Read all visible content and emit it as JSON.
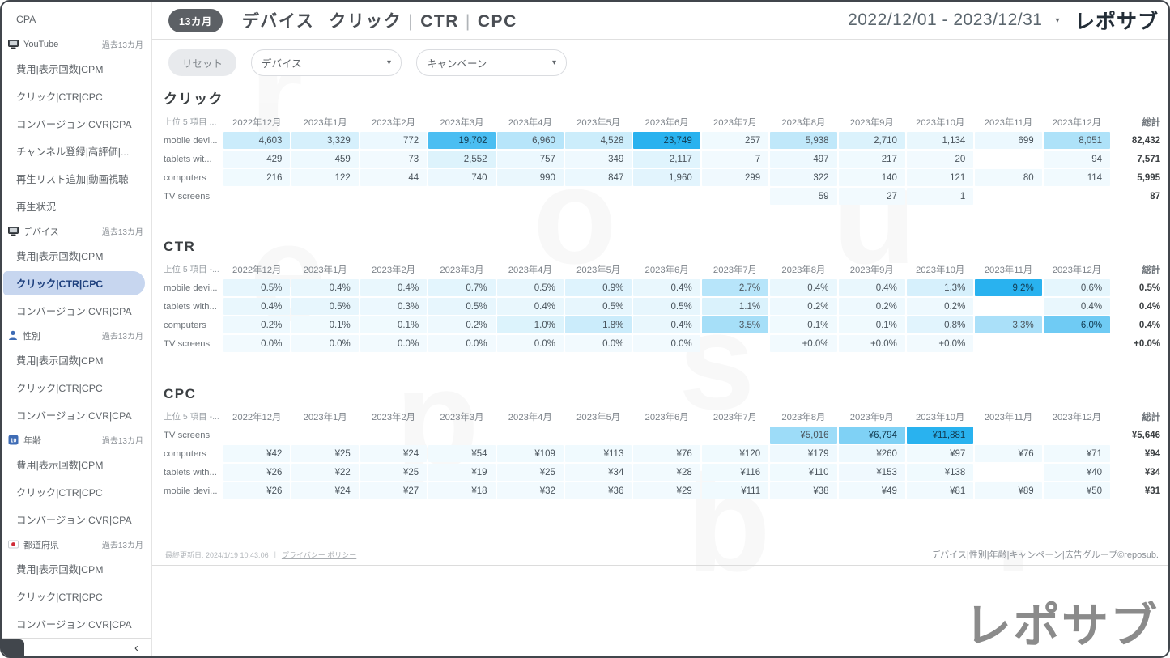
{
  "app": {
    "logo": "レポサブ",
    "watermark_letters": [
      "r",
      "e",
      "p",
      "o",
      "s",
      "u",
      "b",
      "."
    ],
    "accent_color": "#29b2ef",
    "active_item_color": "#c7d6ef"
  },
  "header": {
    "badge": "13カ月",
    "title_parts": [
      "デバイス",
      "クリック",
      "CTR",
      "CPC"
    ],
    "sep": "|",
    "date_range": "2022/12/01 - 2023/12/31"
  },
  "filters": {
    "reset_label": "リセット",
    "dropdowns": [
      "デバイス",
      "キャンペーン"
    ]
  },
  "sidebar": {
    "entries": [
      {
        "type": "item",
        "label": "CPA"
      },
      {
        "type": "section",
        "icon": "monitor",
        "label": "YouTube",
        "period": "過去13カ月"
      },
      {
        "type": "item",
        "label": "費用|表示回数|CPM"
      },
      {
        "type": "item",
        "label": "クリック|CTR|CPC"
      },
      {
        "type": "item",
        "label": "コンバージョン|CVR|CPA"
      },
      {
        "type": "item",
        "label": "チャンネル登録|高評価|..."
      },
      {
        "type": "item",
        "label": "再生リスト追加|動画視聴"
      },
      {
        "type": "item",
        "label": "再生状況"
      },
      {
        "type": "section",
        "icon": "monitor",
        "label": "デバイス",
        "period": "過去13カ月"
      },
      {
        "type": "item",
        "label": "費用|表示回数|CPM"
      },
      {
        "type": "item",
        "label": "クリック|CTR|CPC",
        "active": true
      },
      {
        "type": "item",
        "label": "コンバージョン|CVR|CPA"
      },
      {
        "type": "section",
        "icon": "person",
        "label": "性別",
        "period": "過去13カ月"
      },
      {
        "type": "item",
        "label": "費用|表示回数|CPM"
      },
      {
        "type": "item",
        "label": "クリック|CTR|CPC"
      },
      {
        "type": "item",
        "label": "コンバージョン|CVR|CPA"
      },
      {
        "type": "section",
        "icon": "ten",
        "label": "年齢",
        "period": "過去13カ月"
      },
      {
        "type": "item",
        "label": "費用|表示回数|CPM"
      },
      {
        "type": "item",
        "label": "クリック|CTR|CPC"
      },
      {
        "type": "item",
        "label": "コンバージョン|CVR|CPA"
      },
      {
        "type": "section",
        "icon": "flag-jp",
        "label": "都道府県",
        "period": "過去13カ月"
      },
      {
        "type": "item",
        "label": "費用|表示回数|CPM"
      },
      {
        "type": "item",
        "label": "クリック|CTR|CPC"
      },
      {
        "type": "item",
        "label": "コンバージョン|CVR|CPA"
      }
    ]
  },
  "tables": [
    {
      "key": "clicks",
      "title": "クリック",
      "first_col_header": "上位 5 項目 ...",
      "total_label": "総計",
      "columns": [
        "2022年12月",
        "2023年1月",
        "2023年2月",
        "2023年3月",
        "2023年4月",
        "2023年5月",
        "2023年6月",
        "2023年7月",
        "2023年8月",
        "2023年9月",
        "2023年10月",
        "2023年11月",
        "2023年12月"
      ],
      "rows": [
        {
          "label": "mobile devi...",
          "values": [
            "4,603",
            "3,329",
            "772",
            "19,702",
            "6,960",
            "4,528",
            "23,749",
            "257",
            "5,938",
            "2,710",
            "1,134",
            "699",
            "8,051"
          ],
          "total": "82,432"
        },
        {
          "label": "tablets wit...",
          "values": [
            "429",
            "459",
            "73",
            "2,552",
            "757",
            "349",
            "2,117",
            "7",
            "497",
            "217",
            "20",
            "",
            "94"
          ],
          "total": "7,571"
        },
        {
          "label": "computers",
          "values": [
            "216",
            "122",
            "44",
            "740",
            "990",
            "847",
            "1,960",
            "299",
            "322",
            "140",
            "121",
            "80",
            "114"
          ],
          "total": "5,995"
        },
        {
          "label": "TV screens",
          "values": [
            "",
            "",
            "",
            "",
            "",
            "",
            "",
            "",
            "59",
            "27",
            "1",
            "",
            ""
          ],
          "total": "87"
        }
      ]
    },
    {
      "key": "ctr",
      "title": "CTR",
      "first_col_header": "上位 5 項目 -...",
      "total_label": "総計",
      "columns": [
        "2022年12月",
        "2023年1月",
        "2023年2月",
        "2023年3月",
        "2023年4月",
        "2023年5月",
        "2023年6月",
        "2023年7月",
        "2023年8月",
        "2023年9月",
        "2023年10月",
        "2023年11月",
        "2023年12月"
      ],
      "rows": [
        {
          "label": "mobile devi...",
          "values": [
            "0.5%",
            "0.4%",
            "0.4%",
            "0.7%",
            "0.5%",
            "0.9%",
            "0.4%",
            "2.7%",
            "0.4%",
            "0.4%",
            "1.3%",
            "9.2%",
            "0.6%"
          ],
          "total": "0.5%"
        },
        {
          "label": "tablets with...",
          "values": [
            "0.4%",
            "0.5%",
            "0.3%",
            "0.5%",
            "0.4%",
            "0.5%",
            "0.5%",
            "1.1%",
            "0.2%",
            "0.2%",
            "0.2%",
            "",
            "0.4%"
          ],
          "total": "0.4%"
        },
        {
          "label": "computers",
          "values": [
            "0.2%",
            "0.1%",
            "0.1%",
            "0.2%",
            "1.0%",
            "1.8%",
            "0.4%",
            "3.5%",
            "0.1%",
            "0.1%",
            "0.8%",
            "3.3%",
            "6.0%"
          ],
          "total": "0.4%"
        },
        {
          "label": "TV screens",
          "values": [
            "0.0%",
            "0.0%",
            "0.0%",
            "0.0%",
            "0.0%",
            "0.0%",
            "0.0%",
            "",
            "+0.0%",
            "+0.0%",
            "+0.0%",
            "",
            ""
          ],
          "total": "+0.0%"
        }
      ]
    },
    {
      "key": "cpc",
      "title": "CPC",
      "first_col_header": "上位 5 項目 -...",
      "total_label": "総計",
      "columns": [
        "2022年12月",
        "2023年1月",
        "2023年2月",
        "2023年3月",
        "2023年4月",
        "2023年5月",
        "2023年6月",
        "2023年7月",
        "2023年8月",
        "2023年9月",
        "2023年10月",
        "2023年11月",
        "2023年12月"
      ],
      "rows": [
        {
          "label": "TV screens",
          "values": [
            "",
            "",
            "",
            "",
            "",
            "",
            "",
            "",
            "¥5,016",
            "¥6,794",
            "¥11,881",
            "",
            ""
          ],
          "total": "¥5,646"
        },
        {
          "label": "computers",
          "values": [
            "¥42",
            "¥25",
            "¥24",
            "¥54",
            "¥109",
            "¥113",
            "¥76",
            "¥120",
            "¥179",
            "¥260",
            "¥97",
            "¥76",
            "¥71"
          ],
          "total": "¥94"
        },
        {
          "label": "tablets with...",
          "values": [
            "¥26",
            "¥22",
            "¥25",
            "¥19",
            "¥25",
            "¥34",
            "¥28",
            "¥116",
            "¥110",
            "¥153",
            "¥138",
            "",
            "¥40"
          ],
          "total": "¥34"
        },
        {
          "label": "mobile devi...",
          "values": [
            "¥26",
            "¥24",
            "¥27",
            "¥18",
            "¥32",
            "¥36",
            "¥29",
            "¥111",
            "¥38",
            "¥49",
            "¥81",
            "¥89",
            "¥50"
          ],
          "total": "¥31"
        }
      ]
    }
  ],
  "footer": {
    "last_updated": "最終更新日: 2024/1/19 10:43:06",
    "sep": "|",
    "privacy_link": "プライバシー ポリシー",
    "dimensions": "デバイス|性別|年齢|キャンペーン|広告グループ©reposub."
  }
}
